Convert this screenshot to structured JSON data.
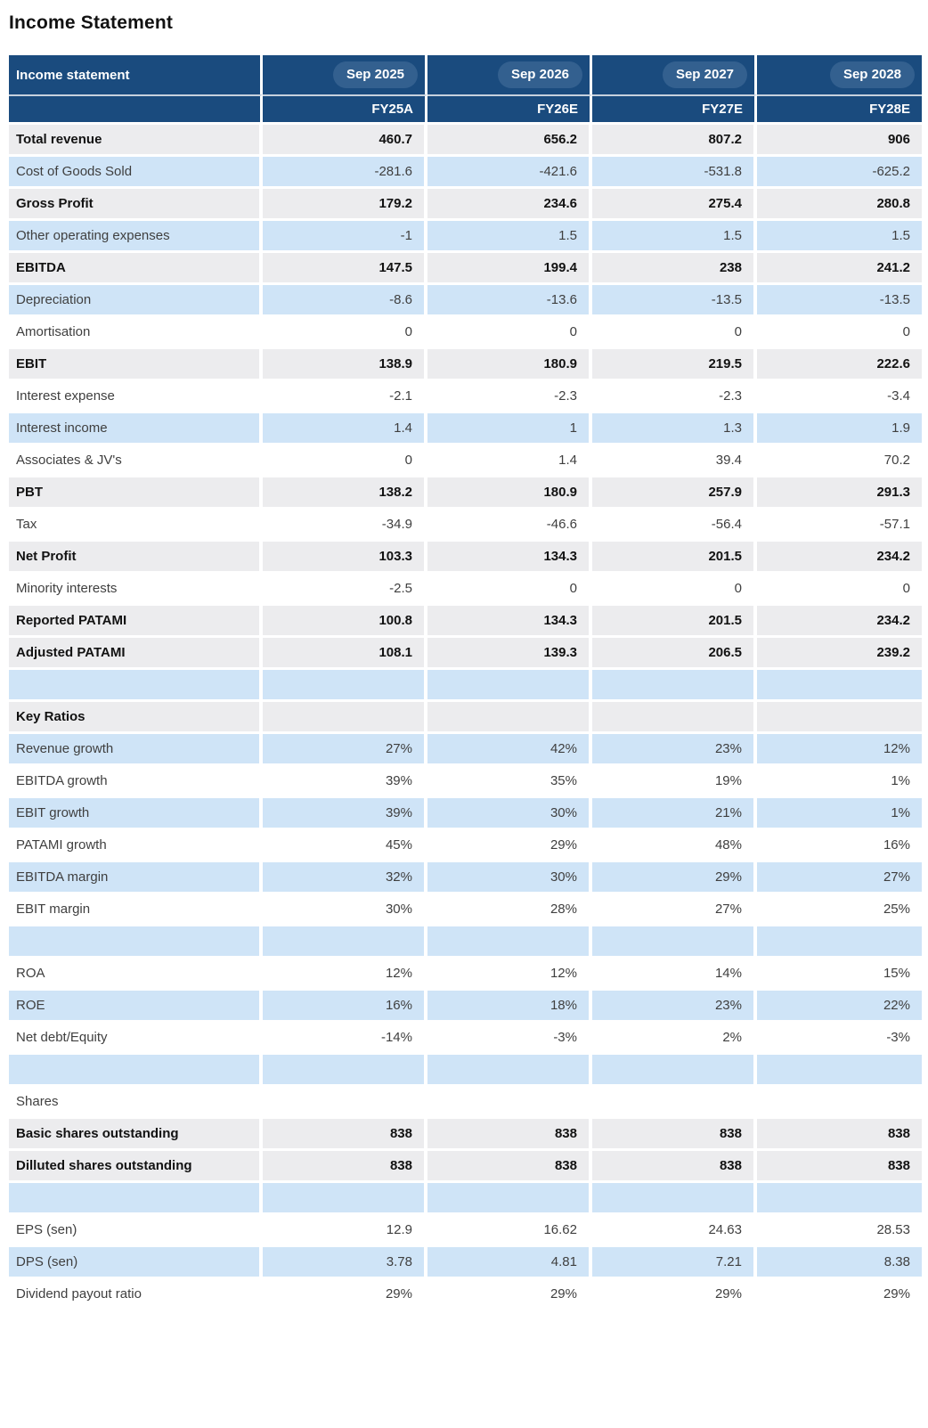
{
  "title": "Income Statement",
  "colors": {
    "header_bg": "#1A4B7E",
    "pill_bg": "#33608F",
    "row_blue": "#CFE4F7",
    "row_gray": "#ECECEE",
    "text_normal": "#3F3F3F",
    "text_strong": "#121212",
    "header_text": "#FFFFFF"
  },
  "table": {
    "header": {
      "label": "Income statement",
      "periods": [
        "Sep 2025",
        "Sep 2026",
        "Sep 2027",
        "Sep 2028"
      ],
      "fiscal": [
        "FY25A",
        "FY26E",
        "FY27E",
        "FY28E"
      ]
    },
    "rows": [
      {
        "label": "Total revenue",
        "style": "strong",
        "values": [
          "460.7",
          "656.2",
          "807.2",
          "906"
        ]
      },
      {
        "label": "Cost of Goods Sold",
        "style": "blue",
        "values": [
          "-281.6",
          "-421.6",
          "-531.8",
          "-625.2"
        ]
      },
      {
        "label": "Gross Profit",
        "style": "strong",
        "values": [
          "179.2",
          "234.6",
          "275.4",
          "280.8"
        ]
      },
      {
        "label": "Other operating expenses",
        "style": "blue",
        "values": [
          "-1",
          "1.5",
          "1.5",
          "1.5"
        ]
      },
      {
        "label": "EBITDA",
        "style": "strong",
        "values": [
          "147.5",
          "199.4",
          "238",
          "241.2"
        ]
      },
      {
        "label": "Depreciation",
        "style": "blue",
        "values": [
          "-8.6",
          "-13.6",
          "-13.5",
          "-13.5"
        ]
      },
      {
        "label": "Amortisation",
        "style": "plain",
        "values": [
          "0",
          "0",
          "0",
          "0"
        ]
      },
      {
        "label": "EBIT",
        "style": "strong",
        "values": [
          "138.9",
          "180.9",
          "219.5",
          "222.6"
        ]
      },
      {
        "label": "Interest expense",
        "style": "plain",
        "values": [
          "-2.1",
          "-2.3",
          "-2.3",
          "-3.4"
        ]
      },
      {
        "label": "Interest income",
        "style": "blue",
        "values": [
          "1.4",
          "1",
          "1.3",
          "1.9"
        ]
      },
      {
        "label": "Associates & JV's",
        "style": "plain",
        "values": [
          "0",
          "1.4",
          "39.4",
          "70.2"
        ]
      },
      {
        "label": "PBT",
        "style": "strong",
        "values": [
          "138.2",
          "180.9",
          "257.9",
          "291.3"
        ]
      },
      {
        "label": "Tax",
        "style": "plain",
        "values": [
          "-34.9",
          "-46.6",
          "-56.4",
          "-57.1"
        ]
      },
      {
        "label": "Net Profit",
        "style": "strong",
        "values": [
          "103.3",
          "134.3",
          "201.5",
          "234.2"
        ]
      },
      {
        "label": "Minority interests",
        "style": "plain",
        "values": [
          "-2.5",
          "0",
          "0",
          "0"
        ]
      },
      {
        "label": "Reported PATAMI",
        "style": "strong",
        "values": [
          "100.8",
          "134.3",
          "201.5",
          "234.2"
        ]
      },
      {
        "label": "Adjusted PATAMI",
        "style": "strong",
        "values": [
          "108.1",
          "139.3",
          "206.5",
          "239.2"
        ]
      },
      {
        "label": "",
        "style": "spacer",
        "values": [
          "",
          "",
          "",
          ""
        ]
      },
      {
        "label": "Key Ratios",
        "style": "strong",
        "values": [
          "",
          "",
          "",
          ""
        ]
      },
      {
        "label": "Revenue growth",
        "style": "blue",
        "values": [
          "27%",
          "42%",
          "23%",
          "12%"
        ]
      },
      {
        "label": "EBITDA growth",
        "style": "plain",
        "values": [
          "39%",
          "35%",
          "19%",
          "1%"
        ]
      },
      {
        "label": "EBIT growth",
        "style": "blue",
        "values": [
          "39%",
          "30%",
          "21%",
          "1%"
        ]
      },
      {
        "label": "PATAMI growth",
        "style": "plain",
        "values": [
          "45%",
          "29%",
          "48%",
          "16%"
        ]
      },
      {
        "label": "EBITDA margin",
        "style": "blue",
        "values": [
          "32%",
          "30%",
          "29%",
          "27%"
        ]
      },
      {
        "label": "EBIT margin",
        "style": "plain",
        "values": [
          "30%",
          "28%",
          "27%",
          "25%"
        ]
      },
      {
        "label": "",
        "style": "spacer",
        "values": [
          "",
          "",
          "",
          ""
        ]
      },
      {
        "label": "ROA",
        "style": "plain",
        "values": [
          "12%",
          "12%",
          "14%",
          "15%"
        ]
      },
      {
        "label": "ROE",
        "style": "blue",
        "values": [
          "16%",
          "18%",
          "23%",
          "22%"
        ]
      },
      {
        "label": "Net debt/Equity",
        "style": "plain",
        "values": [
          "-14%",
          "-3%",
          "2%",
          "-3%"
        ]
      },
      {
        "label": "",
        "style": "spacer",
        "values": [
          "",
          "",
          "",
          ""
        ]
      },
      {
        "label": "Shares",
        "style": "plain",
        "values": [
          "",
          "",
          "",
          ""
        ]
      },
      {
        "label": "Basic shares outstanding",
        "style": "strong",
        "values": [
          "838",
          "838",
          "838",
          "838"
        ]
      },
      {
        "label": "Dilluted shares outstanding",
        "style": "strong",
        "values": [
          "838",
          "838",
          "838",
          "838"
        ]
      },
      {
        "label": "",
        "style": "spacer",
        "values": [
          "",
          "",
          "",
          ""
        ]
      },
      {
        "label": "EPS (sen)",
        "style": "plain",
        "values": [
          "12.9",
          "16.62",
          "24.63",
          "28.53"
        ]
      },
      {
        "label": "DPS (sen)",
        "style": "blue",
        "values": [
          "3.78",
          "4.81",
          "7.21",
          "8.38"
        ]
      },
      {
        "label": "Dividend payout ratio",
        "style": "plain",
        "values": [
          "29%",
          "29%",
          "29%",
          "29%"
        ]
      }
    ]
  }
}
